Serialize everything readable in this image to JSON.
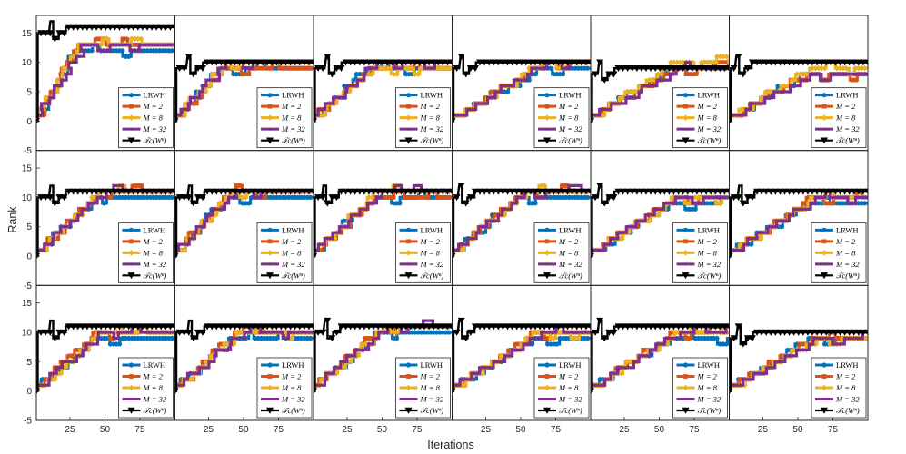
{
  "chart_data": {
    "type": "line",
    "title": "",
    "xlabel": "Iterations",
    "ylabel": "Rank",
    "grid_rows": 3,
    "grid_cols": 6,
    "xlim": [
      1,
      100
    ],
    "ylim": [
      -5,
      18
    ],
    "xticks": [
      25,
      50,
      75
    ],
    "yticks": [
      -5,
      0,
      5,
      10,
      15
    ],
    "x_tick_labels": [
      "25",
      "50",
      "75"
    ],
    "y_tick_labels": [
      "-5",
      "0",
      "5",
      "10",
      "15"
    ],
    "legend_placement": "bottom-right",
    "series": [
      {
        "name": "LRWH",
        "label_math": false,
        "color": "#0072BD",
        "marker": "circle"
      },
      {
        "name": "M = 2",
        "label_math": true,
        "color": "#D95319",
        "marker": "square"
      },
      {
        "name": "M = 8",
        "label_math": true,
        "color": "#EDB120",
        "marker": "diamond"
      },
      {
        "name": "M = 32",
        "label_math": true,
        "color": "#7E2F8E",
        "marker": "dot"
      },
      {
        "name": "𝒯c(Wⁿ)",
        "label_math": true,
        "color": "#000000",
        "marker": "triangle-down"
      }
    ],
    "panels": [
      {
        "row": 0,
        "col": 0,
        "final": {
          "LRWH": 12,
          "M = 2": 13,
          "M = 8": 13,
          "M = 32": 13,
          "𝒯c(Wⁿ)": 16
        },
        "rise_end": 32,
        "black_start": 10
      },
      {
        "row": 0,
        "col": 1,
        "final": {
          "LRWH": 9,
          "M = 2": 9,
          "M = 8": 10,
          "M = 32": 10,
          "𝒯c(Wⁿ)": 10
        },
        "rise_end": 35,
        "black_start": 9
      },
      {
        "row": 0,
        "col": 2,
        "final": {
          "LRWH": 9,
          "M = 2": 9,
          "M = 8": 9,
          "M = 32": 10,
          "𝒯c(Wⁿ)": 10
        },
        "rise_end": 42,
        "black_start": 9
      },
      {
        "row": 0,
        "col": 3,
        "final": {
          "LRWH": 9,
          "M = 2": 10,
          "M = 8": 10,
          "M = 32": 10,
          "𝒯c(Wⁿ)": 10
        },
        "rise_end": 65,
        "black_start": 6
      },
      {
        "row": 0,
        "col": 4,
        "final": {
          "LRWH": 9,
          "M = 2": 9,
          "M = 8": 10,
          "M = 32": 9,
          "𝒯c(Wⁿ)": 9
        },
        "rise_end": 60,
        "black_start": 6
      },
      {
        "row": 0,
        "col": 5,
        "final": {
          "LRWH": 8,
          "M = 2": 8,
          "M = 8": 9,
          "M = 32": 8,
          "𝒯c(Wⁿ)": 10
        },
        "rise_end": 55,
        "black_start": 5
      },
      {
        "row": 1,
        "col": 0,
        "final": {
          "LRWH": 10,
          "M = 2": 11,
          "M = 8": 11,
          "M = 32": 11,
          "𝒯c(Wⁿ)": 11
        },
        "rise_end": 45,
        "black_start": 10
      },
      {
        "row": 1,
        "col": 1,
        "final": {
          "LRWH": 10,
          "M = 2": 11,
          "M = 8": 11,
          "M = 32": 11,
          "𝒯c(Wⁿ)": 11
        },
        "rise_end": 40,
        "black_start": 10
      },
      {
        "row": 1,
        "col": 2,
        "final": {
          "LRWH": 10,
          "M = 2": 10,
          "M = 8": 11,
          "M = 32": 11,
          "𝒯c(Wⁿ)": 11
        },
        "rise_end": 45,
        "black_start": 7
      },
      {
        "row": 1,
        "col": 3,
        "final": {
          "LRWH": 10,
          "M = 2": 11,
          "M = 8": 11,
          "M = 32": 11,
          "𝒯c(Wⁿ)": 11
        },
        "rise_end": 50,
        "black_start": 5
      },
      {
        "row": 1,
        "col": 4,
        "final": {
          "LRWH": 9,
          "M = 2": 10,
          "M = 8": 10,
          "M = 32": 10,
          "𝒯c(Wⁿ)": 11
        },
        "rise_end": 60,
        "black_start": 6
      },
      {
        "row": 1,
        "col": 5,
        "final": {
          "LRWH": 9,
          "M = 2": 10,
          "M = 8": 10,
          "M = 32": 10,
          "𝒯c(Wⁿ)": 11
        },
        "rise_end": 60,
        "black_start": 7
      },
      {
        "row": 2,
        "col": 0,
        "final": {
          "LRWH": 9,
          "M = 2": 10,
          "M = 8": 10,
          "M = 32": 10,
          "𝒯c(Wⁿ)": 11
        },
        "rise_end": 45,
        "black_start": 10
      },
      {
        "row": 2,
        "col": 1,
        "final": {
          "LRWH": 9,
          "M = 2": 10,
          "M = 8": 10,
          "M = 32": 10,
          "𝒯c(Wⁿ)": 11
        },
        "rise_end": 45,
        "black_start": 10
      },
      {
        "row": 2,
        "col": 2,
        "final": {
          "LRWH": 10,
          "M = 2": 11,
          "M = 8": 11,
          "M = 32": 11,
          "𝒯c(Wⁿ)": 11
        },
        "rise_end": 50,
        "black_start": 8
      },
      {
        "row": 2,
        "col": 3,
        "final": {
          "LRWH": 9,
          "M = 2": 10,
          "M = 8": 10,
          "M = 32": 10,
          "𝒯c(Wⁿ)": 11
        },
        "rise_end": 60,
        "black_start": 5
      },
      {
        "row": 2,
        "col": 4,
        "final": {
          "LRWH": 9,
          "M = 2": 10,
          "M = 8": 10,
          "M = 32": 10,
          "𝒯c(Wⁿ)": 11
        },
        "rise_end": 60,
        "black_start": 6
      },
      {
        "row": 2,
        "col": 5,
        "final": {
          "LRWH": 9,
          "M = 2": 9,
          "M = 8": 9,
          "M = 32": 9,
          "𝒯c(Wⁿ)": 10
        },
        "rise_end": 60,
        "black_start": 6
      }
    ]
  }
}
